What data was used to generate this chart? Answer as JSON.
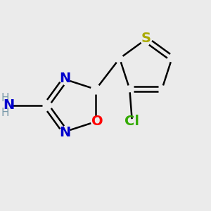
{
  "background_color": "#ebebeb",
  "atom_colors": {
    "C": "#000000",
    "N": "#0000cc",
    "O": "#ff0000",
    "S": "#aaaa00",
    "Cl": "#33aa00",
    "H": "#7a9aaa"
  },
  "bond_color": "#000000",
  "bond_width": 1.8,
  "figsize": [
    3.0,
    3.0
  ],
  "dpi": 100,
  "font_size_atom": 14,
  "font_size_H": 11
}
